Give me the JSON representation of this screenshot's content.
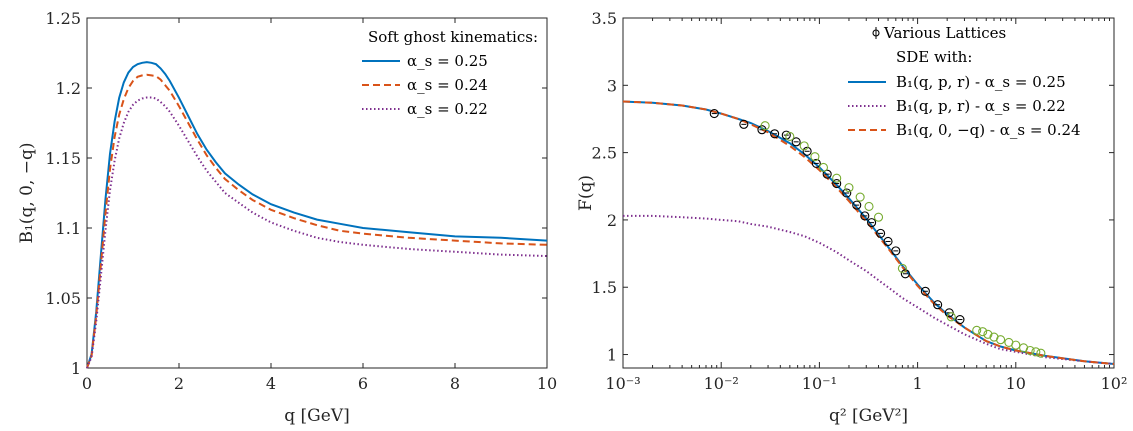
{
  "chart_data": [
    {
      "type": "line",
      "xlabel": "q [GeV]",
      "ylabel": "B₁(q, 0, −q)",
      "xlim": [
        0,
        10
      ],
      "ylim": [
        1,
        1.25
      ],
      "xticks": [
        "0",
        "2",
        "4",
        "6",
        "8",
        "10"
      ],
      "yticks": [
        "1",
        "1.05",
        "1.1",
        "1.15",
        "1.2",
        "1.25"
      ],
      "legend_title": "Soft ghost kinematics:",
      "legend_position": "top-right",
      "series": [
        {
          "name": "α_s = 0.25",
          "style": "solid",
          "color": "#0072bd",
          "x": [
            0,
            0.1,
            0.2,
            0.3,
            0.4,
            0.5,
            0.6,
            0.7,
            0.8,
            0.9,
            1.0,
            1.1,
            1.2,
            1.3,
            1.4,
            1.5,
            1.6,
            1.7,
            1.8,
            2.0,
            2.2,
            2.4,
            2.6,
            2.8,
            3.0,
            3.3,
            3.6,
            4.0,
            4.5,
            5.0,
            5.5,
            6.0,
            7.0,
            8.0,
            9.0,
            10.0
          ],
          "y": [
            1.0,
            1.01,
            1.04,
            1.08,
            1.12,
            1.153,
            1.176,
            1.193,
            1.204,
            1.211,
            1.215,
            1.217,
            1.218,
            1.2185,
            1.218,
            1.217,
            1.214,
            1.21,
            1.205,
            1.193,
            1.18,
            1.167,
            1.156,
            1.147,
            1.139,
            1.131,
            1.124,
            1.117,
            1.111,
            1.106,
            1.103,
            1.1,
            1.097,
            1.094,
            1.093,
            1.091
          ]
        },
        {
          "name": "α_s = 0.24",
          "style": "dashed",
          "color": "#d95319",
          "x": [
            0,
            0.1,
            0.2,
            0.3,
            0.4,
            0.5,
            0.6,
            0.7,
            0.8,
            0.9,
            1.0,
            1.1,
            1.2,
            1.3,
            1.4,
            1.5,
            1.6,
            1.7,
            1.8,
            2.0,
            2.2,
            2.4,
            2.6,
            2.8,
            3.0,
            3.3,
            3.6,
            4.0,
            4.5,
            5.0,
            5.5,
            6.0,
            7.0,
            8.0,
            9.0,
            10.0
          ],
          "y": [
            1.0,
            1.009,
            1.037,
            1.073,
            1.11,
            1.142,
            1.165,
            1.181,
            1.192,
            1.2,
            1.205,
            1.208,
            1.209,
            1.2095,
            1.209,
            1.2085,
            1.206,
            1.202,
            1.198,
            1.187,
            1.175,
            1.163,
            1.152,
            1.143,
            1.135,
            1.127,
            1.12,
            1.113,
            1.107,
            1.102,
            1.098,
            1.096,
            1.093,
            1.091,
            1.089,
            1.088
          ]
        },
        {
          "name": "α_s = 0.22",
          "style": "dotted",
          "color": "#7e2f8e",
          "x": [
            0,
            0.1,
            0.2,
            0.3,
            0.4,
            0.5,
            0.6,
            0.7,
            0.8,
            0.9,
            1.0,
            1.1,
            1.2,
            1.3,
            1.4,
            1.5,
            1.6,
            1.7,
            1.8,
            2.0,
            2.2,
            2.4,
            2.6,
            2.8,
            3.0,
            3.3,
            3.6,
            4.0,
            4.5,
            5.0,
            5.5,
            6.0,
            7.0,
            8.0,
            9.0,
            10.0
          ],
          "y": [
            1.0,
            1.008,
            1.033,
            1.065,
            1.098,
            1.127,
            1.148,
            1.164,
            1.175,
            1.183,
            1.188,
            1.191,
            1.1925,
            1.1932,
            1.1932,
            1.1925,
            1.19,
            1.187,
            1.183,
            1.173,
            1.162,
            1.151,
            1.141,
            1.133,
            1.125,
            1.118,
            1.111,
            1.104,
            1.098,
            1.093,
            1.09,
            1.088,
            1.085,
            1.083,
            1.081,
            1.08
          ]
        }
      ]
    },
    {
      "type": "line",
      "xlabel": "q² [GeV²]",
      "ylabel": "F(q)",
      "xscale": "log",
      "xlim": [
        0.001,
        100
      ],
      "ylim": [
        0.9,
        3.5
      ],
      "xticks": [
        "10⁻³",
        "10⁻²",
        "10⁻¹",
        "1",
        "10",
        "10²"
      ],
      "yticks": [
        "1",
        "1.5",
        "2",
        "2.5",
        "3",
        "3.5"
      ],
      "legend_position": "top-right",
      "legend_subtitle": "SDE with:",
      "series": [
        {
          "name": "Various Lattices",
          "kind": "points",
          "marker": "circle-with-errorbar",
          "color": "#000000",
          "x": [
            0.0085,
            0.017,
            0.026,
            0.035,
            0.046,
            0.058,
            0.075,
            0.093,
            0.12,
            0.15,
            0.19,
            0.24,
            0.29,
            0.34,
            0.42,
            0.5,
            0.6,
            0.75,
            1.2,
            1.6,
            2.1,
            2.7
          ],
          "y": [
            2.79,
            2.71,
            2.67,
            2.64,
            2.63,
            2.58,
            2.51,
            2.42,
            2.34,
            2.27,
            2.2,
            2.11,
            2.03,
            1.98,
            1.9,
            1.84,
            1.77,
            1.6,
            1.47,
            1.37,
            1.31,
            1.26
          ]
        },
        {
          "name": "",
          "kind": "points",
          "marker": "circle",
          "color": "#77ac30",
          "x": [
            0.028,
            0.05,
            0.07,
            0.09,
            0.11,
            0.15,
            0.2,
            0.26,
            0.32,
            0.4,
            0.7,
            2.2,
            4.0,
            4.6,
            5.2,
            6.0,
            7.0,
            8.5,
            10.0,
            12.0,
            14.0,
            16.0,
            18.0
          ],
          "y": [
            2.7,
            2.62,
            2.55,
            2.47,
            2.39,
            2.31,
            2.24,
            2.17,
            2.1,
            2.02,
            1.64,
            1.28,
            1.18,
            1.17,
            1.15,
            1.13,
            1.11,
            1.09,
            1.07,
            1.05,
            1.03,
            1.02,
            1.01
          ]
        },
        {
          "name": "B₁(q, p, r)  - α_s = 0.25",
          "style": "solid",
          "color": "#0072bd",
          "x": [
            0.001,
            0.002,
            0.004,
            0.007,
            0.01,
            0.015,
            0.02,
            0.03,
            0.05,
            0.07,
            0.1,
            0.15,
            0.2,
            0.3,
            0.5,
            0.7,
            1,
            1.5,
            2,
            3,
            5,
            7,
            10,
            20,
            50,
            100
          ],
          "y": [
            2.88,
            2.87,
            2.85,
            2.82,
            2.79,
            2.75,
            2.72,
            2.66,
            2.57,
            2.49,
            2.39,
            2.26,
            2.16,
            2.01,
            1.8,
            1.66,
            1.52,
            1.38,
            1.3,
            1.2,
            1.1,
            1.06,
            1.03,
            0.99,
            0.95,
            0.93
          ]
        },
        {
          "name": "B₁(q, p, r)  - α_s = 0.22",
          "style": "dotted",
          "color": "#7e2f8e",
          "x": [
            0.001,
            0.002,
            0.004,
            0.007,
            0.01,
            0.015,
            0.02,
            0.03,
            0.05,
            0.07,
            0.1,
            0.15,
            0.2,
            0.3,
            0.5,
            0.7,
            1,
            1.5,
            2,
            3,
            5,
            7,
            10,
            20,
            50,
            100
          ],
          "y": [
            2.03,
            2.03,
            2.02,
            2.01,
            2.0,
            1.99,
            1.97,
            1.95,
            1.91,
            1.88,
            1.83,
            1.76,
            1.7,
            1.62,
            1.5,
            1.42,
            1.35,
            1.27,
            1.22,
            1.15,
            1.08,
            1.04,
            1.02,
            0.98,
            0.95,
            0.93
          ]
        },
        {
          "name": "B₁(q, 0, −q) - α_s = 0.24",
          "style": "dashed",
          "color": "#d95319",
          "x": [
            0.001,
            0.002,
            0.004,
            0.007,
            0.01,
            0.015,
            0.02,
            0.03,
            0.05,
            0.07,
            0.1,
            0.15,
            0.2,
            0.3,
            0.5,
            0.7,
            1,
            1.5,
            2,
            3,
            5,
            7,
            10,
            20,
            50,
            100
          ],
          "y": [
            2.88,
            2.87,
            2.85,
            2.82,
            2.79,
            2.75,
            2.71,
            2.65,
            2.55,
            2.47,
            2.37,
            2.24,
            2.14,
            1.99,
            1.79,
            1.65,
            1.51,
            1.37,
            1.29,
            1.2,
            1.1,
            1.06,
            1.03,
            0.99,
            0.95,
            0.93
          ]
        }
      ]
    }
  ]
}
